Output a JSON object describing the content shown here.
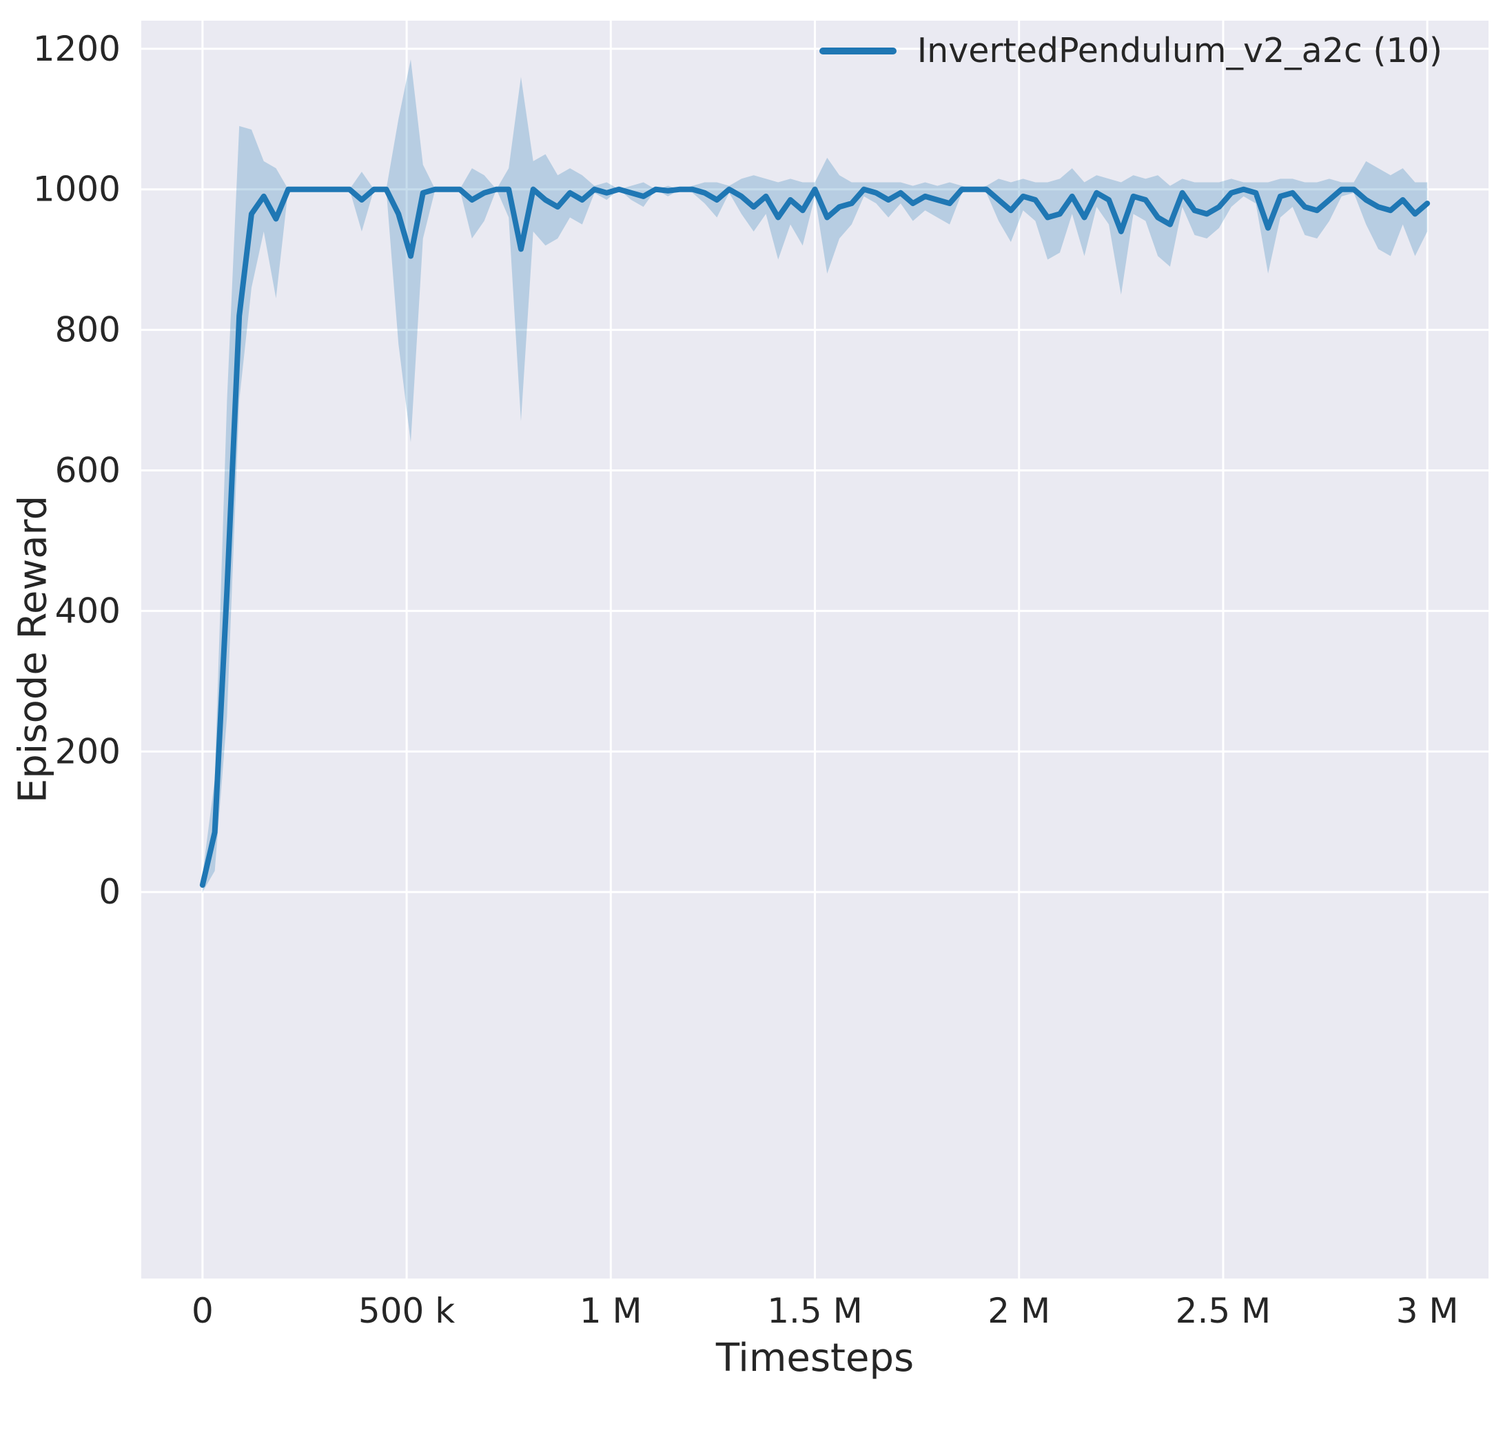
{
  "figure": {
    "xlabel": "Timesteps",
    "ylabel": "Episode Reward",
    "legend": {
      "label": "InvertedPendulum_v2_a2c (10)"
    }
  },
  "colors": {
    "line": "#1f77b4",
    "band": "rgba(31, 119, 180, 0.25)",
    "plot_background": "#eaeaf2",
    "grid": "#ffffff",
    "text": "#262626"
  },
  "chart_data": {
    "type": "line",
    "title": "",
    "xlabel": "Timesteps",
    "ylabel": "Episode Reward",
    "legend_position": "upper right",
    "grid": true,
    "xlim": [
      -150000,
      3150000
    ],
    "ylim": [
      -550,
      1240
    ],
    "x_ticks": [
      {
        "value": 0,
        "label": "0"
      },
      {
        "value": 500000,
        "label": "500 k"
      },
      {
        "value": 1000000,
        "label": "1 M"
      },
      {
        "value": 1500000,
        "label": "1.5 M"
      },
      {
        "value": 2000000,
        "label": "2 M"
      },
      {
        "value": 2500000,
        "label": "2.5 M"
      },
      {
        "value": 3000000,
        "label": "3 M"
      }
    ],
    "y_ticks": [
      {
        "value": 0,
        "label": "0"
      },
      {
        "value": 200,
        "label": "200"
      },
      {
        "value": 400,
        "label": "400"
      },
      {
        "value": 600,
        "label": "600"
      },
      {
        "value": 800,
        "label": "800"
      },
      {
        "value": 1000,
        "label": "1000"
      },
      {
        "value": 1200,
        "label": "1200"
      }
    ],
    "series": [
      {
        "name": "InvertedPendulum_v2_a2c (10)",
        "x": [
          0,
          30000,
          60000,
          90000,
          120000,
          150000,
          180000,
          210000,
          240000,
          270000,
          300000,
          330000,
          360000,
          390000,
          420000,
          450000,
          480000,
          510000,
          540000,
          570000,
          600000,
          630000,
          660000,
          690000,
          720000,
          750000,
          780000,
          810000,
          840000,
          870000,
          900000,
          930000,
          960000,
          990000,
          1020000,
          1050000,
          1080000,
          1110000,
          1140000,
          1170000,
          1200000,
          1230000,
          1260000,
          1290000,
          1320000,
          1350000,
          1380000,
          1410000,
          1440000,
          1470000,
          1500000,
          1530000,
          1560000,
          1590000,
          1620000,
          1650000,
          1680000,
          1710000,
          1740000,
          1770000,
          1800000,
          1830000,
          1860000,
          1890000,
          1920000,
          1950000,
          1980000,
          2010000,
          2040000,
          2070000,
          2100000,
          2130000,
          2160000,
          2190000,
          2220000,
          2250000,
          2280000,
          2310000,
          2340000,
          2370000,
          2400000,
          2430000,
          2460000,
          2490000,
          2520000,
          2550000,
          2580000,
          2610000,
          2640000,
          2670000,
          2700000,
          2730000,
          2760000,
          2790000,
          2820000,
          2850000,
          2880000,
          2910000,
          2940000,
          2970000,
          3000000
        ],
        "mean": [
          10,
          85,
          430,
          820,
          965,
          990,
          958,
          1000,
          1000,
          1000,
          1000,
          1000,
          1000,
          985,
          1000,
          1000,
          965,
          905,
          995,
          1000,
          1000,
          1000,
          985,
          995,
          1000,
          1000,
          915,
          1000,
          985,
          975,
          995,
          985,
          1000,
          995,
          1000,
          995,
          990,
          1000,
          998,
          1000,
          1000,
          995,
          985,
          1000,
          990,
          975,
          990,
          960,
          985,
          970,
          1000,
          960,
          975,
          980,
          1000,
          995,
          985,
          995,
          980,
          990,
          985,
          980,
          1000,
          1000,
          1000,
          985,
          970,
          990,
          985,
          960,
          965,
          990,
          960,
          995,
          985,
          940,
          990,
          985,
          960,
          950,
          995,
          970,
          965,
          975,
          995,
          1000,
          995,
          945,
          990,
          995,
          975,
          970,
          985,
          1000,
          1000,
          985,
          975,
          970,
          985,
          965,
          980
        ],
        "band_low": [
          0,
          30,
          250,
          700,
          860,
          940,
          845,
          1000,
          1000,
          1000,
          1000,
          1000,
          1000,
          940,
          1000,
          1000,
          780,
          640,
          930,
          1000,
          1000,
          1000,
          930,
          955,
          1000,
          960,
          670,
          940,
          920,
          930,
          960,
          950,
          995,
          985,
          1000,
          985,
          975,
          1000,
          990,
          1000,
          995,
          980,
          960,
          995,
          965,
          940,
          965,
          900,
          950,
          920,
          990,
          880,
          930,
          950,
          990,
          980,
          960,
          980,
          955,
          970,
          960,
          950,
          995,
          1000,
          995,
          955,
          925,
          970,
          955,
          900,
          910,
          965,
          905,
          975,
          950,
          850,
          965,
          955,
          905,
          890,
          975,
          935,
          930,
          945,
          975,
          990,
          980,
          880,
          960,
          975,
          935,
          930,
          955,
          990,
          995,
          950,
          915,
          905,
          950,
          905,
          940
        ],
        "band_high": [
          25,
          160,
          700,
          1090,
          1085,
          1040,
          1030,
          1000,
          1000,
          1000,
          1000,
          1000,
          1000,
          1025,
          1000,
          1000,
          1100,
          1185,
          1035,
          1000,
          1000,
          1000,
          1030,
          1020,
          1000,
          1030,
          1160,
          1040,
          1050,
          1020,
          1030,
          1020,
          1005,
          1010,
          1000,
          1005,
          1010,
          1000,
          1005,
          1000,
          1005,
          1010,
          1010,
          1005,
          1015,
          1020,
          1015,
          1010,
          1015,
          1010,
          1010,
          1045,
          1020,
          1010,
          1010,
          1010,
          1010,
          1010,
          1005,
          1010,
          1005,
          1010,
          1005,
          1000,
          1005,
          1015,
          1010,
          1015,
          1010,
          1010,
          1015,
          1030,
          1010,
          1020,
          1015,
          1010,
          1020,
          1015,
          1020,
          1005,
          1015,
          1010,
          1010,
          1010,
          1015,
          1010,
          1010,
          1010,
          1015,
          1015,
          1010,
          1010,
          1015,
          1010,
          1010,
          1040,
          1030,
          1020,
          1030,
          1010,
          1010
        ]
      }
    ]
  }
}
